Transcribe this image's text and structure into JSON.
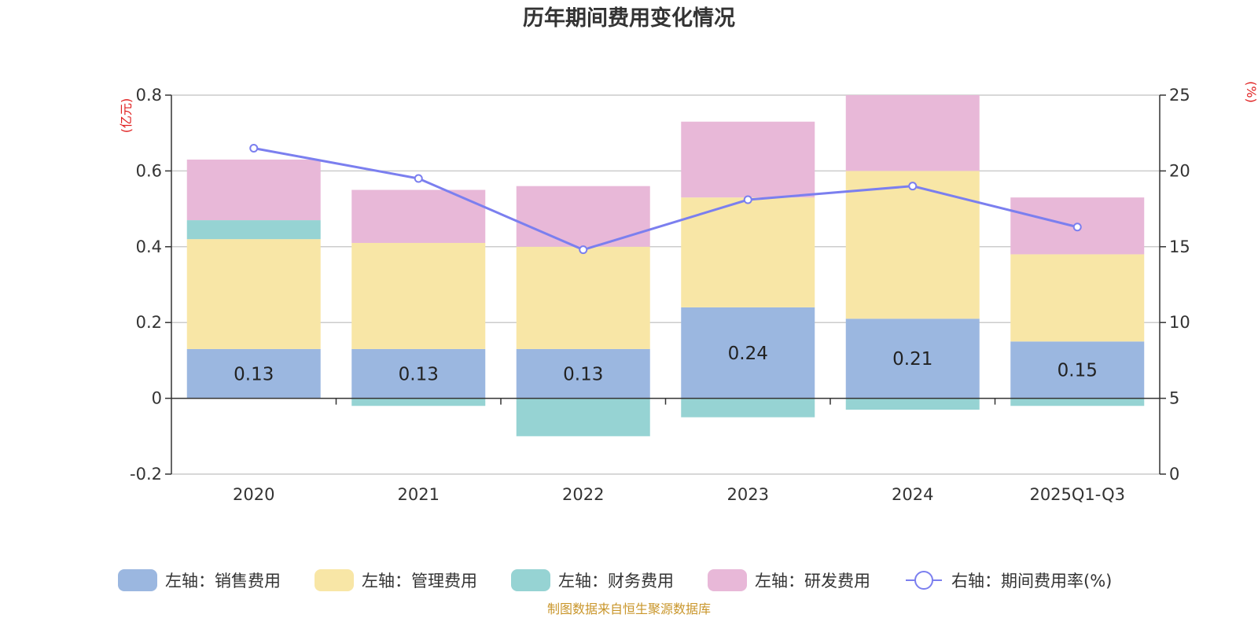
{
  "chart_data": {
    "type": "bar",
    "stacked": true,
    "title": "历年期间费用变化情况",
    "categories": [
      "2020",
      "2021",
      "2022",
      "2023",
      "2024",
      "2025Q1-Q3"
    ],
    "left_axis": {
      "unit": "(亿元)",
      "ylim": [
        -0.2,
        0.8
      ],
      "ticks": [
        -0.2,
        0,
        0.2,
        0.4,
        0.6,
        0.8
      ],
      "tick_labels": [
        "-0.2",
        "0",
        "0.2",
        "0.4",
        "0.6",
        "0.8"
      ]
    },
    "right_axis": {
      "unit": "(%)",
      "ylim": [
        0,
        25
      ],
      "ticks": [
        0,
        5,
        10,
        15,
        20,
        25
      ],
      "tick_labels": [
        "0",
        "5",
        "10",
        "15",
        "20",
        "25"
      ]
    },
    "series": [
      {
        "name": "左轴：销售费用",
        "axis": "left",
        "type": "bar",
        "color": "#9bb7e0",
        "values": [
          0.13,
          0.13,
          0.13,
          0.24,
          0.21,
          0.15
        ],
        "data_labels": [
          "0.13",
          "0.13",
          "0.13",
          "0.24",
          "0.21",
          "0.15"
        ]
      },
      {
        "name": "左轴：管理费用",
        "axis": "left",
        "type": "bar",
        "color": "#f8e6a6",
        "values": [
          0.29,
          0.28,
          0.27,
          0.29,
          0.39,
          0.23
        ]
      },
      {
        "name": "左轴：财务费用",
        "axis": "left",
        "type": "bar",
        "color": "#96d3d3",
        "values": [
          0.05,
          -0.02,
          -0.1,
          -0.05,
          -0.03,
          -0.02
        ]
      },
      {
        "name": "左轴：研发费用",
        "axis": "left",
        "type": "bar",
        "color": "#e8b8d8",
        "values": [
          0.16,
          0.14,
          0.16,
          0.2,
          0.2,
          0.15
        ]
      },
      {
        "name": "右轴：期间费用率(%)",
        "axis": "right",
        "type": "line",
        "color": "#7b7fef",
        "values": [
          21.5,
          19.5,
          14.8,
          18.1,
          19.0,
          16.3
        ]
      }
    ],
    "legend_position": "bottom",
    "source_note": "制图数据来自恒生聚源数据库"
  }
}
